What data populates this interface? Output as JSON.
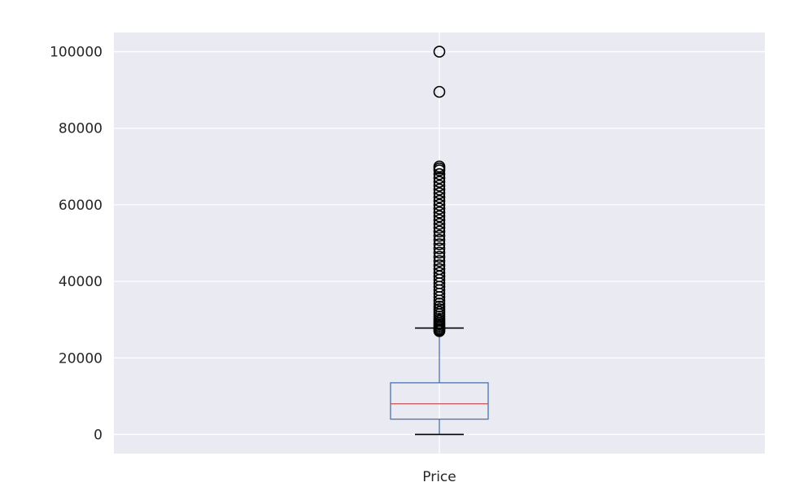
{
  "chart_data": {
    "type": "box",
    "title": "",
    "xlabel": "",
    "ylabel": "",
    "categories": [
      "Price"
    ],
    "ylim": [
      -5000,
      105000
    ],
    "y_ticks": [
      0,
      20000,
      40000,
      60000,
      80000,
      100000
    ],
    "y_tick_labels": [
      "0",
      "20000",
      "40000",
      "60000",
      "80000",
      "100000"
    ],
    "grid": true,
    "series": [
      {
        "category": "Price",
        "whisker_low": 0,
        "q1": 4000,
        "median": 8000,
        "q3": 13500,
        "whisker_high": 27800,
        "outliers": [
          27000,
          27300,
          27600,
          28000,
          28400,
          28800,
          29200,
          29700,
          30200,
          30800,
          31400,
          32000,
          32700,
          33400,
          34200,
          35000,
          35900,
          36800,
          37700,
          38600,
          39500,
          40400,
          41300,
          42200,
          43200,
          44200,
          45300,
          46400,
          47500,
          48600,
          49700,
          50800,
          51900,
          53000,
          54000,
          55000,
          56000,
          57000,
          58000,
          59000,
          60000,
          61000,
          62000,
          63000,
          64000,
          65000,
          66000,
          67000,
          68000,
          69000,
          69500,
          70000,
          89500,
          100000
        ]
      }
    ],
    "colors": {
      "plot_background": "#eaeaf2",
      "grid": "#ffffff",
      "box": "#4c72b0",
      "median": "#c44e52",
      "whisker": "#4c72b0",
      "cap": "#000000",
      "outlier": "#000000"
    }
  }
}
